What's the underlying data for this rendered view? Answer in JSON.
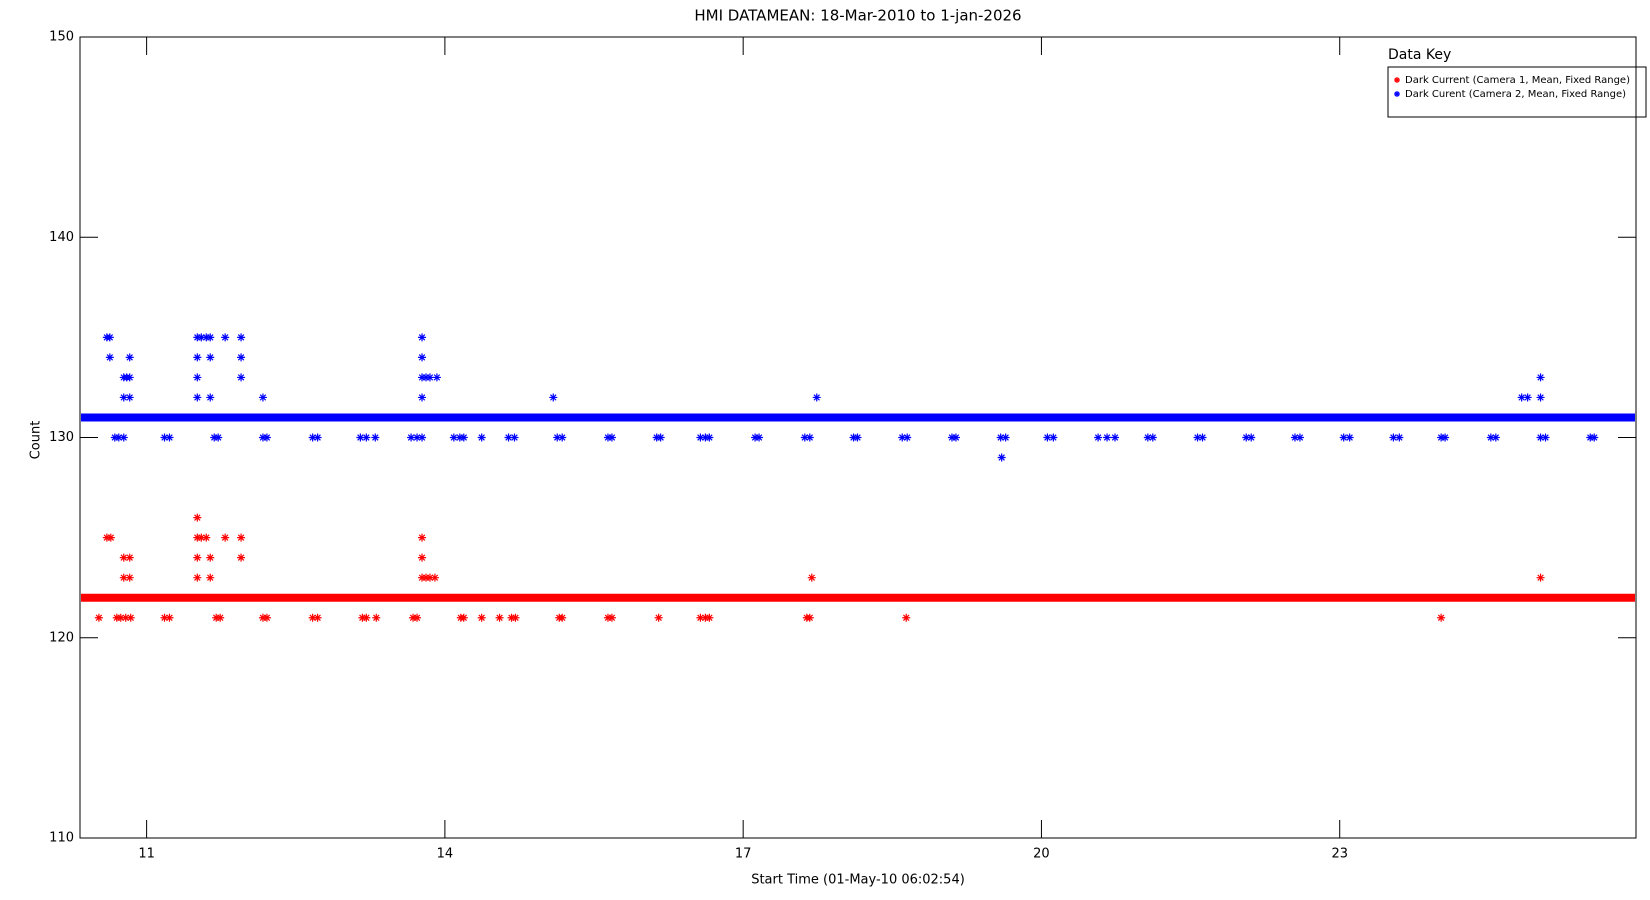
{
  "chart_data": {
    "type": "scatter",
    "title": "HMI DATAMEAN: 18-Mar-2010 to 1-jan-2026",
    "xlabel": "Start Time (01-May-10 06:02:54)",
    "ylabel": "Count",
    "legend_title": "Data Key",
    "legend": "upper right",
    "xlim": [
      10.33,
      25.98
    ],
    "xticks": [
      11,
      14,
      17,
      20,
      23
    ],
    "ylim": [
      110,
      150
    ],
    "yticks": [
      110,
      120,
      130,
      140,
      150
    ],
    "hlines": [
      {
        "value": 131,
        "color": "#0000ff"
      },
      {
        "value": 122,
        "color": "#ff0000"
      }
    ],
    "series": [
      {
        "name": "Dark Current (Camera 1, Mean, Fixed Range)",
        "color": "#ff0000",
        "x": [
          10.52,
          10.6,
          10.64,
          10.7,
          10.74,
          10.79,
          10.77,
          10.83,
          10.77,
          10.83,
          10.84,
          11.18,
          11.23,
          11.51,
          11.51,
          11.55,
          11.6,
          11.51,
          11.64,
          11.51,
          11.64,
          11.79,
          11.95,
          11.95,
          11.7,
          11.74,
          12.17,
          12.21,
          12.67,
          12.72,
          13.17,
          13.21,
          13.31,
          13.68,
          13.72,
          13.77,
          13.77,
          13.77,
          13.81,
          13.85,
          13.9,
          14.16,
          14.19,
          14.37,
          14.55,
          14.67,
          14.71,
          15.15,
          15.18,
          15.64,
          15.68,
          16.15,
          16.57,
          16.62,
          16.66,
          17.64,
          17.67,
          17.69,
          18.64,
          24.02,
          25.02
        ],
        "values": [
          121,
          125,
          125,
          121,
          121,
          121,
          124,
          124,
          123,
          123,
          121,
          121,
          121,
          126,
          125,
          125,
          125,
          124,
          124,
          123,
          123,
          125,
          125,
          124,
          121,
          121,
          121,
          121,
          121,
          121,
          121,
          121,
          121,
          121,
          121,
          125,
          124,
          123,
          123,
          123,
          123,
          121,
          121,
          121,
          121,
          121,
          121,
          121,
          121,
          121,
          121,
          121,
          121,
          121,
          121,
          121,
          121,
          123,
          121,
          121,
          123
        ]
      },
      {
        "name": "Dark Curent (Camera 2, Mean, Fixed Range)",
        "color": "#0000ff",
        "x": [
          10.6,
          10.63,
          10.63,
          10.68,
          10.72,
          10.77,
          10.77,
          10.8,
          10.77,
          10.83,
          10.83,
          10.83,
          11.18,
          11.23,
          11.51,
          11.55,
          11.6,
          11.64,
          11.51,
          11.51,
          11.51,
          11.64,
          11.64,
          11.79,
          11.95,
          11.95,
          11.95,
          11.68,
          11.72,
          12.17,
          12.17,
          12.21,
          12.67,
          12.72,
          13.15,
          13.21,
          13.3,
          13.66,
          13.72,
          13.77,
          13.77,
          13.77,
          13.77,
          13.77,
          13.81,
          13.85,
          13.92,
          14.09,
          14.15,
          14.19,
          14.37,
          14.64,
          14.7,
          15.09,
          15.13,
          15.18,
          15.64,
          15.68,
          16.13,
          16.17,
          16.57,
          16.62,
          16.66,
          17.12,
          17.16,
          17.62,
          17.67,
          17.74,
          18.11,
          18.15,
          18.6,
          18.65,
          19.1,
          19.14,
          19.59,
          19.64,
          19.6,
          20.06,
          20.12,
          20.57,
          20.66,
          20.74,
          21.07,
          21.12,
          21.57,
          21.62,
          22.06,
          22.11,
          22.55,
          22.6,
          23.04,
          23.1,
          23.54,
          23.6,
          24.02,
          24.06,
          24.52,
          24.57,
          24.83,
          24.89,
          25.02,
          25.02,
          25.02,
          25.07,
          25.52,
          25.56
        ],
        "values": [
          135,
          135,
          134,
          130,
          130,
          130,
          133,
          133,
          132,
          132,
          134,
          133,
          130,
          130,
          135,
          135,
          135,
          135,
          134,
          133,
          132,
          134,
          132,
          135,
          135,
          134,
          133,
          130,
          130,
          132,
          130,
          130,
          130,
          130,
          130,
          130,
          130,
          130,
          130,
          130,
          135,
          134,
          133,
          132,
          133,
          133,
          133,
          130,
          130,
          130,
          130,
          130,
          130,
          132,
          130,
          130,
          130,
          130,
          130,
          130,
          130,
          130,
          130,
          130,
          130,
          130,
          130,
          132,
          130,
          130,
          130,
          130,
          130,
          130,
          130,
          130,
          129,
          130,
          130,
          130,
          130,
          130,
          130,
          130,
          130,
          130,
          130,
          130,
          130,
          130,
          130,
          130,
          130,
          130,
          130,
          130,
          130,
          130,
          132,
          132,
          133,
          132,
          130,
          130,
          130,
          130
        ]
      }
    ]
  }
}
